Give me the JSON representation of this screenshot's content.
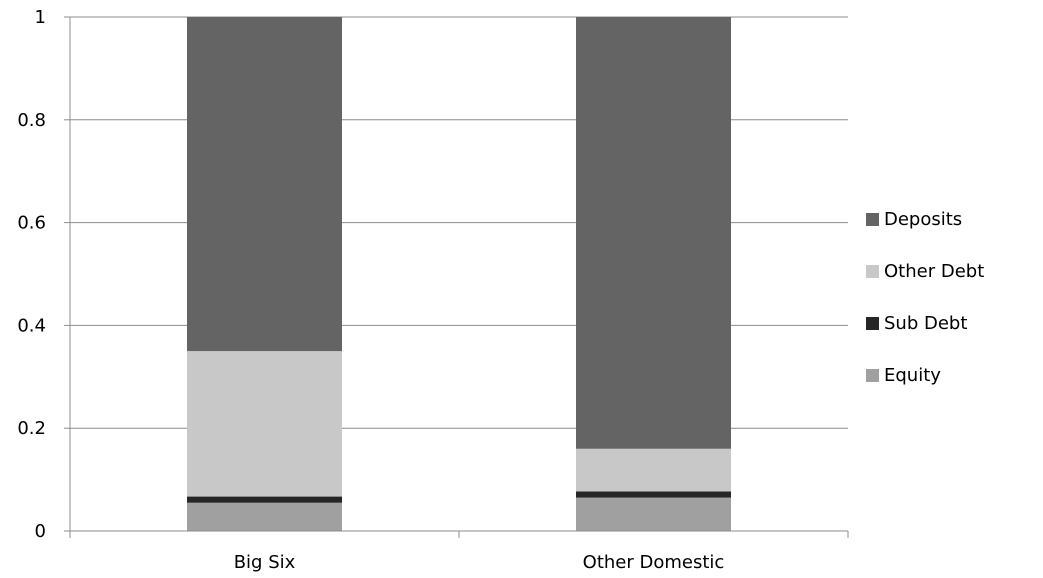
{
  "chart_data": {
    "type": "bar",
    "stacked": true,
    "categories": [
      "Big Six",
      "Other Domestic"
    ],
    "series": [
      {
        "name": "Equity",
        "color": "#a0a0a0",
        "values": [
          0.055,
          0.065
        ]
      },
      {
        "name": "Sub Debt",
        "color": "#262626",
        "values": [
          0.012,
          0.012
        ]
      },
      {
        "name": "Other Debt",
        "color": "#c8c8c8",
        "values": [
          0.283,
          0.083
        ]
      },
      {
        "name": "Deposits",
        "color": "#646464",
        "values": [
          0.65,
          0.84
        ]
      }
    ],
    "ylim": [
      0,
      1
    ],
    "yticks": [
      "0",
      "0.2",
      "0.4",
      "0.6",
      "0.8",
      "1"
    ],
    "grid": true,
    "legend_position": "right",
    "legend_order": [
      "Deposits",
      "Other Debt",
      "Sub Debt",
      "Equity"
    ],
    "title": "",
    "xlabel": "",
    "ylabel": ""
  }
}
